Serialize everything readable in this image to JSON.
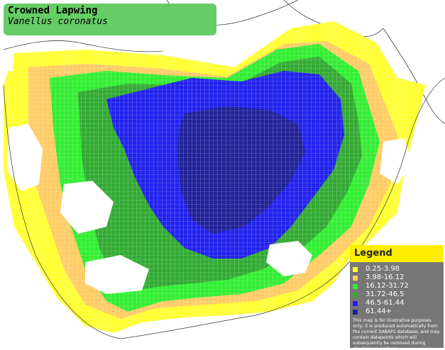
{
  "title": {
    "common_name": "Crowned Lapwing",
    "scientific_name": "Vanellus coronatus"
  },
  "legend": {
    "heading": "Legend",
    "items": [
      {
        "label": "0.25-3.98",
        "color": "#ffff33"
      },
      {
        "label": "3.98-16.12",
        "color": "#ffcc66"
      },
      {
        "label": "16.12-31.72",
        "color": "#33ee33"
      },
      {
        "label": "31.72-46.5",
        "color": "#33aa33"
      },
      {
        "label": "46.5-61.44",
        "color": "#2222ee"
      },
      {
        "label": "61.44+",
        "color": "#222299"
      }
    ],
    "disclaimer": "This map is for illustrative purposes only; it is produced automatically from the current SABAP2 database, and may contain datapoints which will subsequently be removed during checking operations."
  }
}
